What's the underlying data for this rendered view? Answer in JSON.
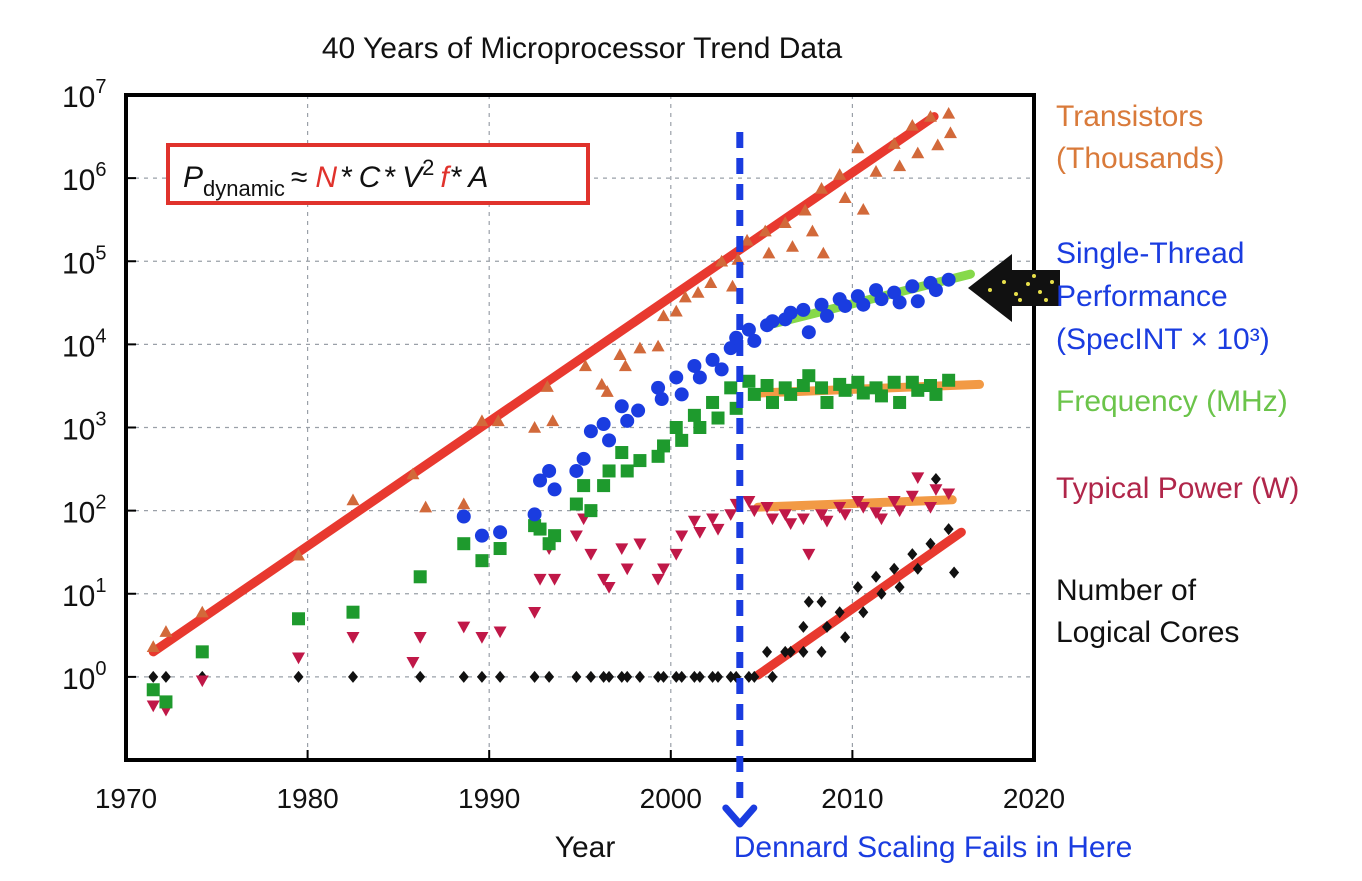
{
  "chart_data": {
    "type": "scatter",
    "title": "40 Years of Microprocessor Trend Data",
    "xlabel": "Year",
    "ylabel": "",
    "xlim": [
      1970,
      2020
    ],
    "ylim": [
      0.1,
      10000000
    ],
    "yscale": "log",
    "x_ticks": [
      "1970",
      "1980",
      "1990",
      "2000",
      "2010",
      "2020"
    ],
    "y_ticks": [
      {
        "base": "10",
        "exp": "0",
        "value": 1
      },
      {
        "base": "10",
        "exp": "1",
        "value": 10
      },
      {
        "base": "10",
        "exp": "2",
        "value": 100
      },
      {
        "base": "10",
        "exp": "3",
        "value": 1000
      },
      {
        "base": "10",
        "exp": "4",
        "value": 10000
      },
      {
        "base": "10",
        "exp": "5",
        "value": 100000
      },
      {
        "base": "10",
        "exp": "6",
        "value": 1000000
      },
      {
        "base": "10",
        "exp": "7",
        "value": 10000000
      }
    ],
    "grid": true,
    "formula": {
      "P": "P",
      "sub": "dynamic",
      "approx": "≈",
      "N": "N",
      "star1": "*",
      "C": "C",
      "star2": "*",
      "V": "V",
      "sup": "2",
      "f": "f",
      "star3": "*",
      "A": "A"
    },
    "series": [
      {
        "name": "Transistors (Thousands)",
        "label_lines": [
          "Transistors",
          "(Thousands)"
        ],
        "color": "#d2693a",
        "label_color": "#d97a3a",
        "marker": "triangle-up",
        "points": [
          [
            1971.5,
            2.3
          ],
          [
            1972.2,
            3.5
          ],
          [
            1974.2,
            6
          ],
          [
            1979.5,
            29
          ],
          [
            1982.5,
            134
          ],
          [
            1985.8,
            275
          ],
          [
            1986.5,
            110
          ],
          [
            1988.6,
            120
          ],
          [
            1989.6,
            1200
          ],
          [
            1990.5,
            1200
          ],
          [
            1992.5,
            1000
          ],
          [
            1993.2,
            3100
          ],
          [
            1993.5,
            1200
          ],
          [
            1995.3,
            5500
          ],
          [
            1996.2,
            3300
          ],
          [
            1996.5,
            2700
          ],
          [
            1997.2,
            7500
          ],
          [
            1997.5,
            5500
          ],
          [
            1998.3,
            9000
          ],
          [
            1999.3,
            9500
          ],
          [
            1999.6,
            22000
          ],
          [
            2000.3,
            25000
          ],
          [
            2000.8,
            37000
          ],
          [
            2001.5,
            42000
          ],
          [
            2002.2,
            55000
          ],
          [
            2002.8,
            100000
          ],
          [
            2003.4,
            50000
          ],
          [
            2003.7,
            105000
          ],
          [
            2004.2,
            178000
          ],
          [
            2005.2,
            230000
          ],
          [
            2005.4,
            125000
          ],
          [
            2006.3,
            290000
          ],
          [
            2006.7,
            150000
          ],
          [
            2007.4,
            410000
          ],
          [
            2007.8,
            230000
          ],
          [
            2008.3,
            750000
          ],
          [
            2008.4,
            125000
          ],
          [
            2009.3,
            1100000
          ],
          [
            2009.6,
            580000
          ],
          [
            2010.3,
            2300000
          ],
          [
            2010.6,
            420000
          ],
          [
            2011.3,
            1200000
          ],
          [
            2012.3,
            2600000
          ],
          [
            2012.6,
            1400000
          ],
          [
            2013.3,
            4300000
          ],
          [
            2013.6,
            2000000
          ],
          [
            2014.3,
            5500000
          ],
          [
            2014.7,
            2500000
          ],
          [
            2015.3,
            6000000
          ],
          [
            2015.4,
            3500000
          ]
        ]
      },
      {
        "name": "Single-Thread Performance (SpecINT × 10³)",
        "label_lines": [
          "Single-Thread",
          "Performance",
          "(SpecINT × 10³)"
        ],
        "color": "#1a3ce0",
        "label_color": "#1a3ce0",
        "marker": "circle",
        "points": [
          [
            1988.6,
            85
          ],
          [
            1989.6,
            50
          ],
          [
            1990.6,
            55
          ],
          [
            1992.5,
            90
          ],
          [
            1992.8,
            230
          ],
          [
            1993.3,
            300
          ],
          [
            1993.6,
            180
          ],
          [
            1994.8,
            300
          ],
          [
            1995.2,
            420
          ],
          [
            1995.6,
            900
          ],
          [
            1996.3,
            1100
          ],
          [
            1996.6,
            700
          ],
          [
            1997.3,
            1800
          ],
          [
            1997.6,
            1200
          ],
          [
            1998.2,
            1600
          ],
          [
            1999.3,
            3000
          ],
          [
            1999.5,
            2200
          ],
          [
            2000.3,
            4000
          ],
          [
            2000.6,
            2500
          ],
          [
            2001.3,
            5500
          ],
          [
            2001.6,
            4000
          ],
          [
            2002.3,
            6500
          ],
          [
            2002.8,
            5000
          ],
          [
            2003.3,
            9000
          ],
          [
            2003.6,
            12000
          ],
          [
            2004.3,
            15000
          ],
          [
            2004.6,
            11000
          ],
          [
            2005.3,
            17000
          ],
          [
            2005.6,
            19000
          ],
          [
            2006.3,
            20000
          ],
          [
            2006.6,
            24000
          ],
          [
            2007.3,
            26000
          ],
          [
            2007.6,
            14000
          ],
          [
            2008.3,
            30000
          ],
          [
            2008.6,
            22000
          ],
          [
            2009.3,
            35000
          ],
          [
            2009.6,
            29000
          ],
          [
            2010.3,
            38000
          ],
          [
            2010.6,
            30000
          ],
          [
            2011.3,
            45000
          ],
          [
            2011.6,
            35000
          ],
          [
            2012.3,
            42000
          ],
          [
            2012.6,
            32000
          ],
          [
            2013.3,
            50000
          ],
          [
            2013.6,
            33000
          ],
          [
            2014.3,
            55000
          ],
          [
            2014.6,
            45000
          ],
          [
            2015.3,
            60000
          ]
        ]
      },
      {
        "name": "Frequency (MHz)",
        "label_lines": [
          "Frequency (MHz)"
        ],
        "color": "#1e9a2d",
        "label_color": "#6bc44a",
        "marker": "square",
        "points": [
          [
            1971.5,
            0.7
          ],
          [
            1972.2,
            0.5
          ],
          [
            1974.2,
            2
          ],
          [
            1979.5,
            5
          ],
          [
            1982.5,
            6
          ],
          [
            1986.2,
            16
          ],
          [
            1988.6,
            40
          ],
          [
            1989.6,
            25
          ],
          [
            1990.6,
            35
          ],
          [
            1992.5,
            66
          ],
          [
            1992.8,
            60
          ],
          [
            1993.3,
            40
          ],
          [
            1993.6,
            50
          ],
          [
            1994.8,
            120
          ],
          [
            1995.2,
            200
          ],
          [
            1995.6,
            100
          ],
          [
            1996.3,
            200
          ],
          [
            1996.6,
            300
          ],
          [
            1997.3,
            500
          ],
          [
            1997.6,
            300
          ],
          [
            1998.3,
            400
          ],
          [
            1999.3,
            450
          ],
          [
            1999.6,
            600
          ],
          [
            2000.3,
            1000
          ],
          [
            2000.6,
            700
          ],
          [
            2001.3,
            1400
          ],
          [
            2001.6,
            1000
          ],
          [
            2002.3,
            2000
          ],
          [
            2002.6,
            1300
          ],
          [
            2003.3,
            3000
          ],
          [
            2003.6,
            1700
          ],
          [
            2004.3,
            3600
          ],
          [
            2004.6,
            2500
          ],
          [
            2005.3,
            3200
          ],
          [
            2005.6,
            2000
          ],
          [
            2006.3,
            3000
          ],
          [
            2006.6,
            2500
          ],
          [
            2007.3,
            3200
          ],
          [
            2007.6,
            4200
          ],
          [
            2008.3,
            3000
          ],
          [
            2008.6,
            2000
          ],
          [
            2009.3,
            3300
          ],
          [
            2009.6,
            2800
          ],
          [
            2010.3,
            3500
          ],
          [
            2010.6,
            2600
          ],
          [
            2011.3,
            3000
          ],
          [
            2011.6,
            2400
          ],
          [
            2012.3,
            3500
          ],
          [
            2012.6,
            2000
          ],
          [
            2013.3,
            3500
          ],
          [
            2013.6,
            2800
          ],
          [
            2014.3,
            3200
          ],
          [
            2014.6,
            2500
          ],
          [
            2015.3,
            3700
          ]
        ]
      },
      {
        "name": "Typical Power (W)",
        "label_lines": [
          "Typical Power (W)"
        ],
        "color": "#c01848",
        "label_color": "#b0264a",
        "marker": "triangle-down",
        "points": [
          [
            1971.5,
            0.45
          ],
          [
            1972.2,
            0.4
          ],
          [
            1974.2,
            0.9
          ],
          [
            1979.5,
            1.7
          ],
          [
            1982.5,
            3
          ],
          [
            1985.8,
            1.5
          ],
          [
            1986.2,
            3
          ],
          [
            1988.6,
            4
          ],
          [
            1989.6,
            3
          ],
          [
            1990.6,
            3.5
          ],
          [
            1992.5,
            6
          ],
          [
            1992.8,
            15
          ],
          [
            1993.3,
            35
          ],
          [
            1993.6,
            15
          ],
          [
            1994.8,
            50
          ],
          [
            1995.2,
            80
          ],
          [
            1995.6,
            30
          ],
          [
            1996.3,
            15
          ],
          [
            1996.6,
            12
          ],
          [
            1997.3,
            35
          ],
          [
            1997.6,
            20
          ],
          [
            1998.3,
            40
          ],
          [
            1999.3,
            15
          ],
          [
            1999.6,
            20
          ],
          [
            2000.3,
            30
          ],
          [
            2000.6,
            50
          ],
          [
            2001.3,
            75
          ],
          [
            2001.6,
            55
          ],
          [
            2002.3,
            80
          ],
          [
            2002.6,
            60
          ],
          [
            2003.3,
            90
          ],
          [
            2003.6,
            120
          ],
          [
            2004.3,
            130
          ],
          [
            2004.6,
            100
          ],
          [
            2005.3,
            110
          ],
          [
            2005.6,
            80
          ],
          [
            2006.3,
            90
          ],
          [
            2006.6,
            70
          ],
          [
            2007.3,
            80
          ],
          [
            2007.6,
            30
          ],
          [
            2008.3,
            90
          ],
          [
            2008.6,
            75
          ],
          [
            2009.3,
            110
          ],
          [
            2009.6,
            90
          ],
          [
            2010.3,
            130
          ],
          [
            2010.6,
            110
          ],
          [
            2011.3,
            95
          ],
          [
            2011.6,
            80
          ],
          [
            2012.3,
            130
          ],
          [
            2012.6,
            100
          ],
          [
            2013.3,
            150
          ],
          [
            2013.6,
            250
          ],
          [
            2014.3,
            110
          ],
          [
            2014.6,
            180
          ],
          [
            2015.3,
            160
          ]
        ]
      },
      {
        "name": "Number of Logical Cores",
        "label_lines": [
          "Number of",
          "Logical Cores"
        ],
        "color": "#111111",
        "label_color": "#111111",
        "marker": "diamond",
        "points": [
          [
            1971.5,
            1
          ],
          [
            1972.2,
            1
          ],
          [
            1974.2,
            1
          ],
          [
            1979.5,
            1
          ],
          [
            1982.5,
            1
          ],
          [
            1986.2,
            1
          ],
          [
            1988.6,
            1
          ],
          [
            1989.6,
            1
          ],
          [
            1990.6,
            1
          ],
          [
            1992.5,
            1
          ],
          [
            1993.3,
            1
          ],
          [
            1994.8,
            1
          ],
          [
            1995.6,
            1
          ],
          [
            1996.3,
            1
          ],
          [
            1996.6,
            1
          ],
          [
            1997.3,
            1
          ],
          [
            1997.6,
            1
          ],
          [
            1998.3,
            1
          ],
          [
            1999.3,
            1
          ],
          [
            1999.6,
            1
          ],
          [
            2000.3,
            1
          ],
          [
            2000.6,
            1
          ],
          [
            2001.3,
            1
          ],
          [
            2001.6,
            1
          ],
          [
            2002.3,
            1
          ],
          [
            2002.6,
            1
          ],
          [
            2003.3,
            1
          ],
          [
            2003.6,
            1
          ],
          [
            2004.3,
            1
          ],
          [
            2004.6,
            1
          ],
          [
            2005.3,
            2
          ],
          [
            2005.6,
            1
          ],
          [
            2006.3,
            2
          ],
          [
            2006.6,
            2
          ],
          [
            2007.3,
            2
          ],
          [
            2007.3,
            4
          ],
          [
            2007.6,
            8
          ],
          [
            2008.3,
            2
          ],
          [
            2008.3,
            8
          ],
          [
            2008.6,
            4
          ],
          [
            2009.3,
            6
          ],
          [
            2009.6,
            3
          ],
          [
            2010.3,
            12
          ],
          [
            2010.6,
            6
          ],
          [
            2011.3,
            16
          ],
          [
            2011.6,
            10
          ],
          [
            2012.3,
            20
          ],
          [
            2012.6,
            12
          ],
          [
            2013.3,
            30
          ],
          [
            2013.6,
            20
          ],
          [
            2014.3,
            40
          ],
          [
            2014.6,
            240
          ],
          [
            2015.3,
            60
          ],
          [
            2015.6,
            18
          ]
        ]
      }
    ],
    "trend_lines": [
      {
        "name": "transistor-trend",
        "color": "#e8392f",
        "from": [
          1971.5,
          2
        ],
        "to": [
          2014.5,
          5500000
        ]
      },
      {
        "name": "performance-trend",
        "color": "#86d94a",
        "from": [
          2005.3,
          17000
        ],
        "to": [
          2016.5,
          70000
        ]
      },
      {
        "name": "frequency-trend",
        "color": "#f29a45",
        "from": [
          2004.8,
          2600
        ],
        "to": [
          2017.0,
          3300
        ]
      },
      {
        "name": "power-trend",
        "color": "#f29a45",
        "from": [
          2004.8,
          110
        ],
        "to": [
          2015.5,
          135
        ]
      },
      {
        "name": "cores-trend",
        "color": "#e8392f",
        "from": [
          2004.8,
          1.05
        ],
        "to": [
          2016.0,
          55
        ]
      }
    ],
    "annotation": {
      "text": "Dennard Scaling Fails in Here",
      "color": "#1a3ce0",
      "x": 2003.8
    },
    "arrow": {
      "color": "#111111",
      "dot_color": "#e8e04a",
      "points_to_series": "Single-Thread Performance (SpecINT × 10³)"
    }
  }
}
